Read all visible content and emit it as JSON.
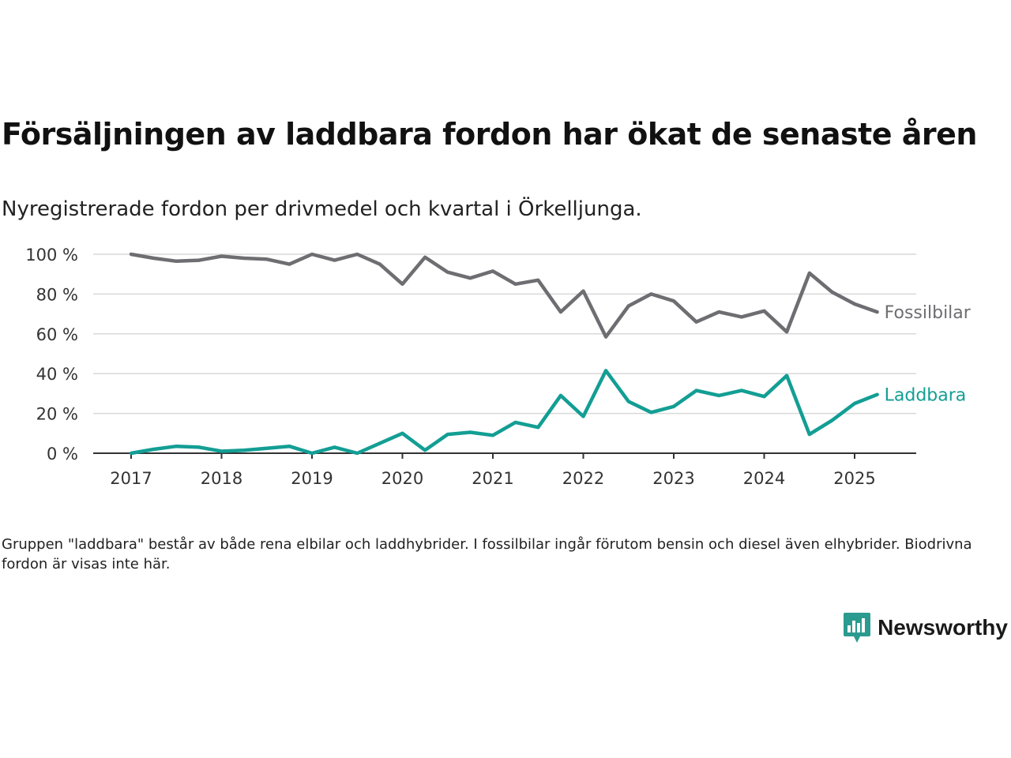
{
  "title": "Försäljningen av laddbara fordon har ökat de senaste åren",
  "subtitle": "Nyregistrerade fordon per drivmedel och kvartal i Örkelljunga.",
  "note": "Gruppen \"laddbara\" består av både rena elbilar och laddhybrider. I fossilbilar ingår förutom bensin och diesel även elhybrider. Biodrivna fordon är visas inte här.",
  "brand": {
    "name": "Newsworthy",
    "color": "#2b9a8f"
  },
  "chart_data": {
    "type": "line",
    "ylim": [
      0,
      100
    ],
    "yticks": [
      0,
      20,
      40,
      60,
      80,
      100
    ],
    "ytick_labels": [
      "0 %",
      "20 %",
      "40 %",
      "60 %",
      "80 %",
      "100 %"
    ],
    "xticks": [
      "2017",
      "2018",
      "2019",
      "2020",
      "2021",
      "2022",
      "2023",
      "2024",
      "2025"
    ],
    "grid": true,
    "legend": "direct labels at line ends",
    "x": [
      "2017-Q1",
      "2017-Q2",
      "2017-Q3",
      "2017-Q4",
      "2018-Q1",
      "2018-Q2",
      "2018-Q3",
      "2018-Q4",
      "2019-Q1",
      "2019-Q2",
      "2019-Q3",
      "2019-Q4",
      "2020-Q1",
      "2020-Q2",
      "2020-Q3",
      "2020-Q4",
      "2021-Q1",
      "2021-Q2",
      "2021-Q3",
      "2021-Q4",
      "2022-Q1",
      "2022-Q2",
      "2022-Q3",
      "2022-Q4",
      "2023-Q1",
      "2023-Q2",
      "2023-Q3",
      "2023-Q4",
      "2024-Q1",
      "2024-Q2",
      "2024-Q3",
      "2024-Q4",
      "2025-Q1",
      "2025-Q2"
    ],
    "series": [
      {
        "name": "Fossilbilar",
        "color": "#6e6e72",
        "values": [
          100,
          98,
          96.5,
          97,
          99,
          98,
          97.5,
          95,
          100,
          97,
          100,
          95,
          85,
          98.5,
          91,
          88,
          91.5,
          85,
          87,
          71,
          81.5,
          58.5,
          74,
          80,
          76.5,
          66,
          71,
          68.5,
          71.5,
          61,
          90.5,
          81,
          75,
          71
        ]
      },
      {
        "name": "Laddbara",
        "color": "#139e94",
        "values": [
          0,
          2,
          3.5,
          3,
          1,
          1.5,
          2.5,
          3.5,
          0,
          3,
          0,
          5,
          10,
          1.5,
          9.5,
          10.5,
          9,
          15.5,
          13,
          29,
          18.5,
          41.5,
          26,
          20.5,
          23.5,
          31.5,
          29,
          31.5,
          28.5,
          39,
          9.5,
          16.5,
          25,
          29.5
        ]
      }
    ]
  }
}
